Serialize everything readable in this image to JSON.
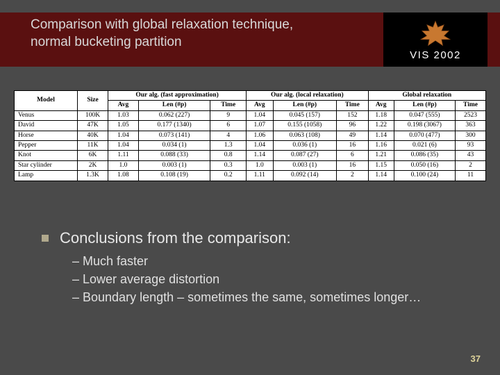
{
  "title": "Comparison with global relaxation technique, normal bucketing partition",
  "logo_text": "VIS 2002",
  "table": {
    "headers_top": [
      "Model",
      "Size",
      "Our alg. (fast approximation)",
      "Our alg. (local relaxation)",
      "Global relaxation"
    ],
    "headers_sub": [
      "Avg",
      "Len (#p)",
      "Time",
      "Avg",
      "Len (#p)",
      "Time",
      "Avg",
      "Len (#p)",
      "Time"
    ],
    "rows": [
      [
        "Venus",
        "100K",
        "1.03",
        "0.062 (227)",
        "9",
        "1.04",
        "0.045 (157)",
        "152",
        "1.18",
        "0.047 (555)",
        "2523"
      ],
      [
        "David",
        "47K",
        "1.05",
        "0.177 (1340)",
        "6",
        "1.07",
        "0.155 (1058)",
        "96",
        "1.22",
        "0.198 (3067)",
        "363"
      ],
      [
        "Horse",
        "40K",
        "1.04",
        "0.073 (141)",
        "4",
        "1.06",
        "0.063 (108)",
        "49",
        "1.14",
        "0.070 (477)",
        "300"
      ],
      [
        "Pepper",
        "11K",
        "1.04",
        "0.034 (1)",
        "1.3",
        "1.04",
        "0.036 (1)",
        "16",
        "1.16",
        "0.021 (6)",
        "93"
      ],
      [
        "Knot",
        "6K",
        "1.11",
        "0.088 (33)",
        "0.8",
        "1.14",
        "0.087 (27)",
        "6",
        "1.21",
        "0.086 (35)",
        "43"
      ],
      [
        "Star cylinder",
        "2K",
        "1.0",
        "0.003 (1)",
        "0.3",
        "1.0",
        "0.003 (1)",
        "16",
        "1.15",
        "0.050 (16)",
        "2"
      ],
      [
        "Lamp",
        "1.3K",
        "1.08",
        "0.108 (19)",
        "0.2",
        "1.11",
        "0.092 (14)",
        "2",
        "1.14",
        "0.100 (24)",
        "11"
      ]
    ]
  },
  "conclusions_heading": "Conclusions from the comparison:",
  "conclusions_items": [
    "Much faster",
    "Lower average distortion",
    "Boundary length – sometimes the same, sometimes longer…"
  ],
  "page_number": "37",
  "colors": {
    "bg": "#4a4a4a",
    "header_band": "#5a1010",
    "bullet_square": "#b0a88c",
    "page_num": "#ddd299"
  }
}
